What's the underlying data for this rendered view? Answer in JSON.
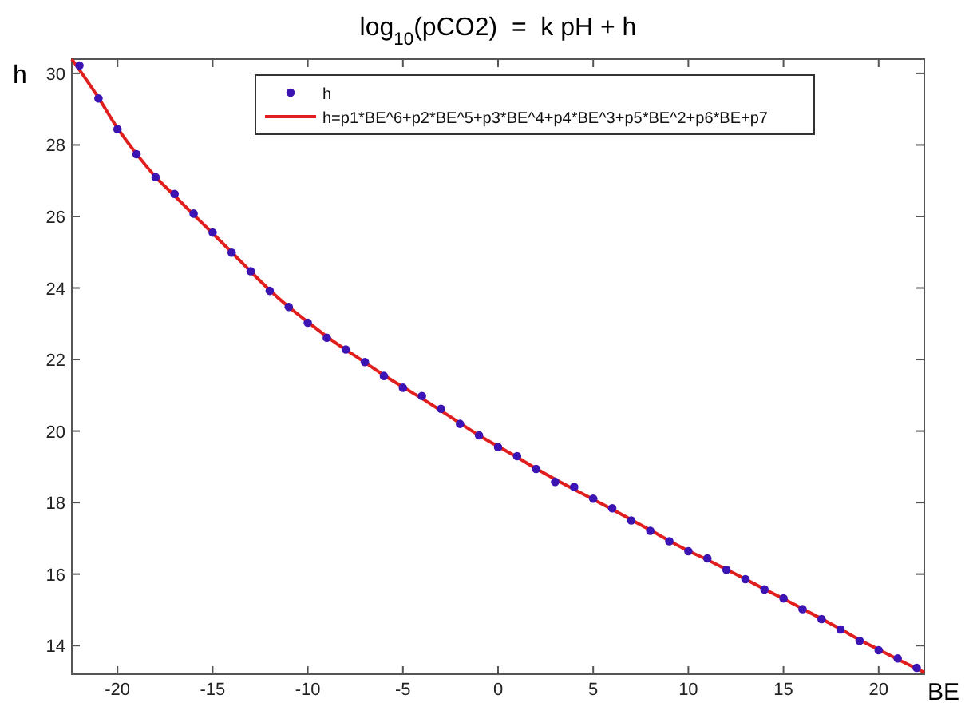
{
  "chart_data": {
    "type": "scatter",
    "title": "log$_{10}$(pCO2)  =  k pH + h",
    "xlabel": "BE",
    "ylabel": "h",
    "xlim": [
      -22.4,
      22.4
    ],
    "ylim": [
      13.2,
      30.4
    ],
    "xticks": [
      -20,
      -15,
      -10,
      -5,
      0,
      5,
      10,
      15,
      20
    ],
    "yticks": [
      14,
      16,
      18,
      20,
      22,
      24,
      26,
      28,
      30
    ],
    "grid": false,
    "legend": "top",
    "marker": "circle",
    "series": [
      {
        "name": "h",
        "color": "#3c14b4",
        "x": [
          -22,
          -21,
          -20,
          -19,
          -18,
          -17,
          -16,
          -15,
          -14,
          -13,
          -12,
          -11,
          -10,
          -9,
          -8,
          -7,
          -6,
          -5,
          -4,
          -3,
          -2,
          -1,
          0,
          1,
          2,
          3,
          4,
          5,
          6,
          7,
          8,
          9,
          10,
          11,
          12,
          13,
          14,
          15,
          16,
          17,
          18,
          19,
          20,
          21,
          22
        ],
        "values": [
          30.22,
          29.3,
          28.44,
          27.74,
          27.1,
          26.63,
          26.08,
          25.55,
          24.99,
          24.47,
          23.92,
          23.47,
          23.03,
          22.61,
          22.28,
          21.93,
          21.54,
          21.21,
          20.98,
          20.62,
          20.2,
          19.88,
          19.55,
          19.3,
          18.94,
          18.58,
          18.44,
          18.11,
          17.84,
          17.5,
          17.21,
          16.92,
          16.64,
          16.44,
          16.12,
          15.86,
          15.57,
          15.32,
          15.02,
          14.74,
          14.45,
          14.13,
          13.87,
          13.64,
          13.38
        ]
      },
      {
        "name": "h=p1*BE^6+p2*BE^5+p3*BE^4+p4*BE^3+p5*BE^2+p6*BE+p7",
        "type": "line",
        "color": "#e01e1e",
        "marker": "none",
        "line_style": "solid",
        "x": [
          -22.4,
          -21,
          -20,
          -19,
          -18,
          -17,
          -16,
          -15,
          -14,
          -13,
          -12,
          -11,
          -10,
          -9,
          -8,
          -7,
          -6,
          -5,
          -4,
          -3,
          -2,
          -1,
          0,
          1,
          2,
          3,
          4,
          5,
          6,
          7,
          8,
          9,
          10,
          11,
          12,
          13,
          14,
          15,
          16,
          17,
          18,
          19,
          20,
          21,
          22.4
        ],
        "values": [
          30.4,
          29.32,
          28.47,
          27.75,
          27.11,
          26.58,
          26.05,
          25.53,
          25.0,
          24.46,
          23.94,
          23.47,
          23.05,
          22.64,
          22.27,
          21.92,
          21.56,
          21.23,
          20.91,
          20.57,
          20.22,
          19.88,
          19.57,
          19.27,
          18.95,
          18.65,
          18.37,
          18.09,
          17.81,
          17.52,
          17.23,
          16.93,
          16.65,
          16.4,
          16.13,
          15.86,
          15.58,
          15.31,
          15.03,
          14.75,
          14.46,
          14.16,
          13.89,
          13.62,
          13.25
        ]
      }
    ]
  }
}
